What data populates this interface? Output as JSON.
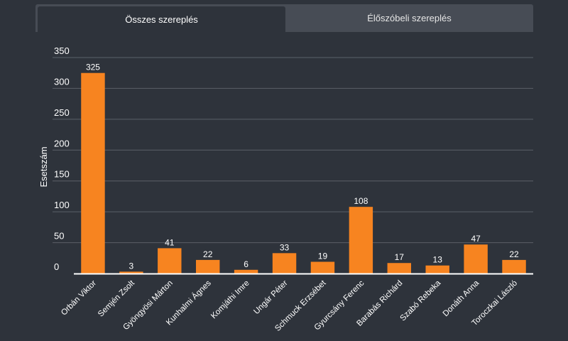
{
  "tabs": [
    {
      "label": "Összes szereplés",
      "active": true
    },
    {
      "label": "Élőszóbeli szereplés",
      "active": false
    }
  ],
  "colors": {
    "background": "#2e333b",
    "bar": "#f78420",
    "grid": "#5b6068",
    "text": "#ffffff",
    "tab_inactive": "#474c55"
  },
  "chart_data": {
    "type": "bar",
    "title": "",
    "xlabel": "",
    "ylabel": "Esetszám",
    "ylim": [
      0,
      350
    ],
    "yticks": [
      0,
      50,
      100,
      150,
      200,
      250,
      300,
      350
    ],
    "grid": true,
    "categories": [
      "Orbán Viktor",
      "Semjén Zsolt",
      "Gyöngyösi Márton",
      "Kunhalmi Ágnes",
      "Komjáthi Imre",
      "Ungár Péter",
      "Schmuck Erzsébet",
      "Gyurcsány Ferenc",
      "Barabás Richárd",
      "Szabó Rebeka",
      "Donáth Anna",
      "Toroczkai László"
    ],
    "values": [
      325,
      3,
      41,
      22,
      6,
      33,
      19,
      108,
      17,
      13,
      47,
      22
    ]
  }
}
